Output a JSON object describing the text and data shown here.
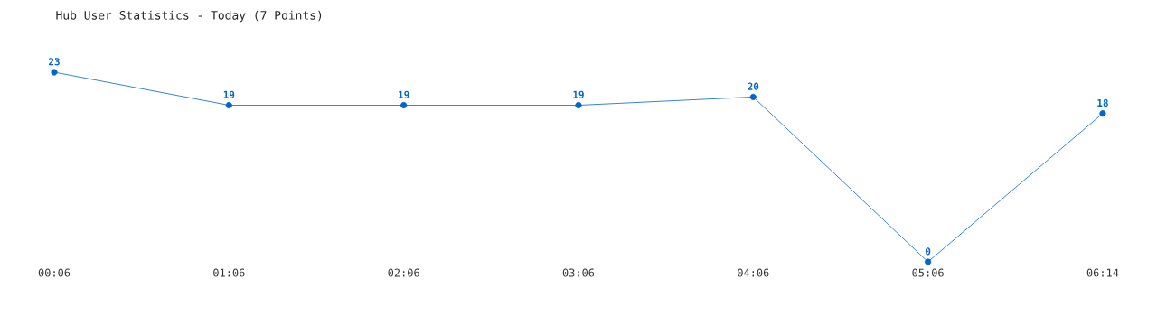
{
  "chart_data": {
    "type": "line",
    "title": "Hub User Statistics - Today (7 Points)",
    "categories": [
      "00:06",
      "01:06",
      "02:06",
      "03:06",
      "04:06",
      "05:06",
      "06:14"
    ],
    "values": [
      23,
      19,
      19,
      19,
      20,
      0,
      18
    ],
    "color": "#0066cc",
    "marker": "circle",
    "data_labels": true
  }
}
